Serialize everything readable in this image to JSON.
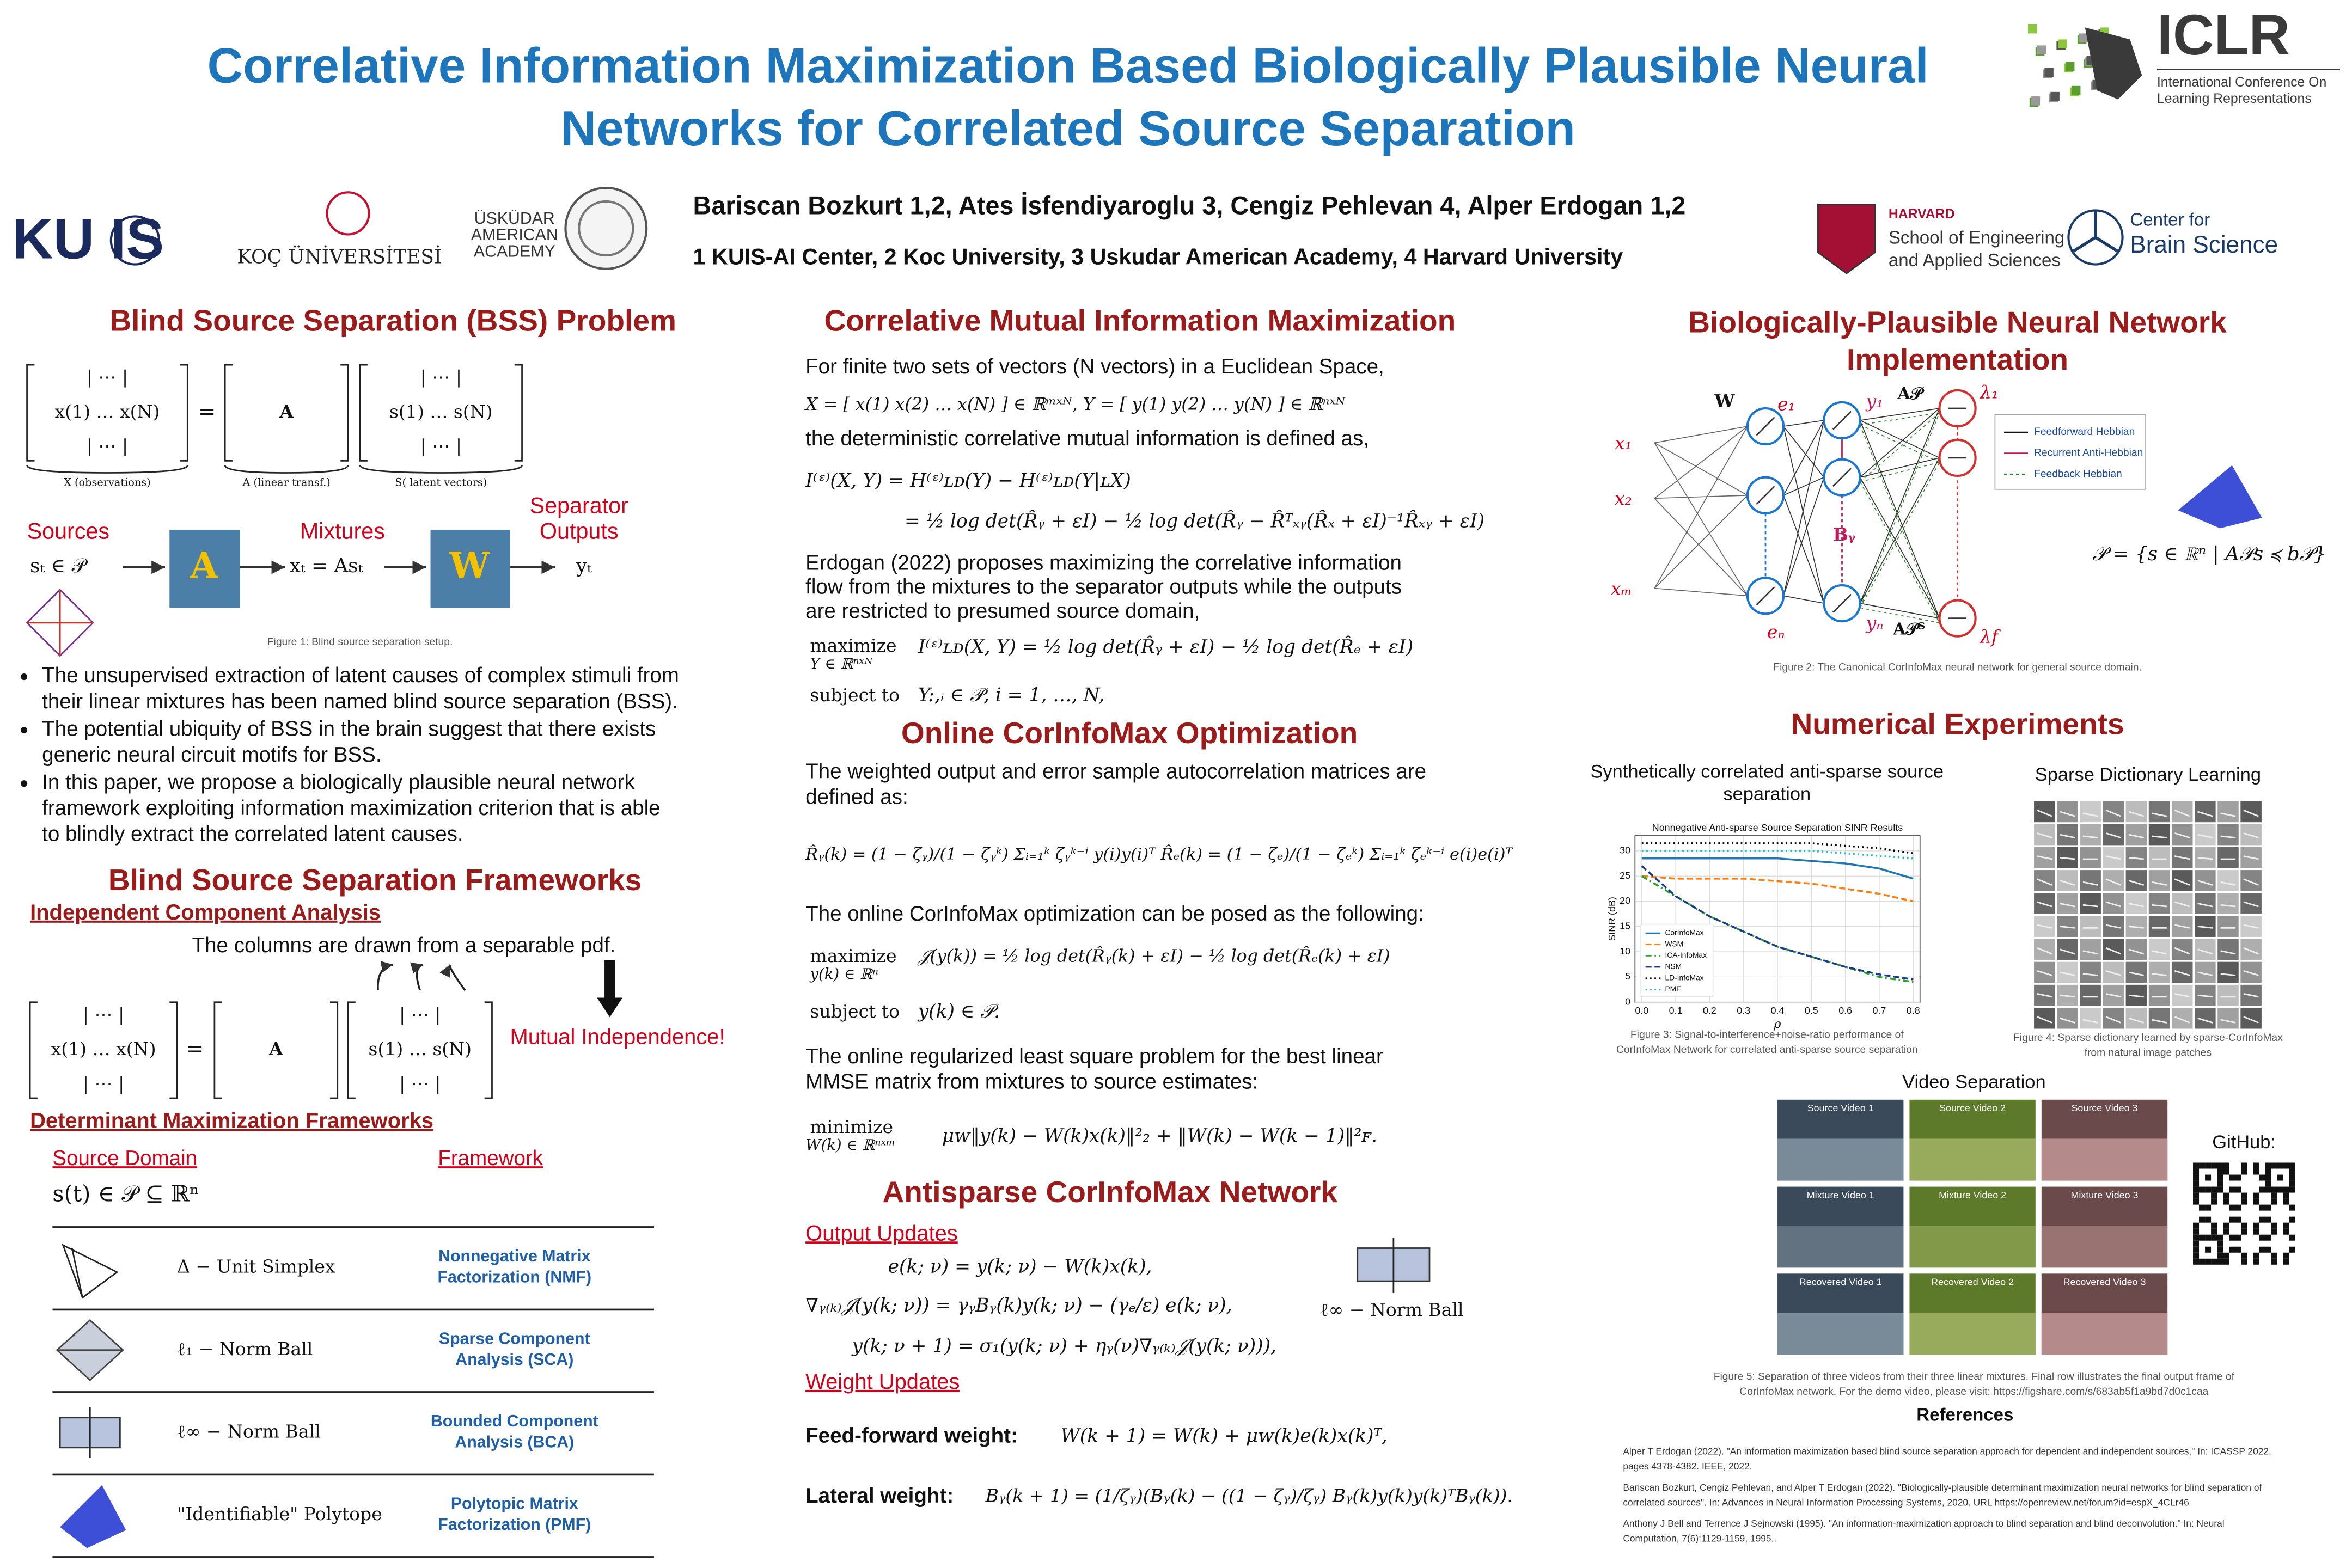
{
  "header": {
    "title_lines": [
      "Correlative Information Maximization Based Biologically Plausible Neural",
      "Networks for Correlated Source Separation"
    ],
    "authors": "Bariscan Bozkurt 1,2, Ates İsfendiyaroglu 3, Cengiz Pehlevan 4, Alper Erdogan 1,2",
    "affiliations": "1 KUIS-AI Center, 2 Koc University, 3 Uskudar American Academy, 4 Harvard University"
  },
  "logos": {
    "kuis": "KU IS",
    "koc": "KOÇ ÜNİVERSİTESİ",
    "uskudar": [
      "ÜSKÜDAR",
      "AMERICAN",
      "ACADEMY"
    ],
    "harvard": [
      "HARVARD",
      "School of Engineering",
      "and Applied Sciences"
    ],
    "cbs": [
      "Center for",
      "Brain Science"
    ],
    "iclr": [
      "ICLR",
      "International Conference On",
      "Learning Representations"
    ]
  },
  "bss_problem": {
    "heading": "Blind Source Separation (BSS) Problem",
    "matrix": {
      "x_rows": [
        "|   ⋯   |",
        "x(1)  …  x(N)",
        "|   ⋯   |"
      ],
      "s_rows": [
        "|   ⋯   |",
        "s(1)  …  s(N)",
        "|   ⋯   |"
      ],
      "a": "A",
      "equals": "=",
      "labels": [
        "X (observations)",
        "A (linear transf.)",
        "S( latent vectors)"
      ]
    },
    "diagram": {
      "sources": "Sources",
      "source_eq": "sₜ ∈ 𝒫",
      "a_box": "A",
      "mixtures": "Mixtures",
      "mix_eq": "xₜ = Asₜ",
      "w_box": "W",
      "outputs": [
        "Separator",
        "Outputs"
      ],
      "output_eq": "yₜ",
      "caption": "Figure 1: Blind source separation setup."
    },
    "bullets": [
      [
        "The unsupervised extraction of latent causes of complex stimuli from",
        "their linear mixtures has been named blind source separation (BSS)."
      ],
      [
        "The potential ubiquity of BSS in the brain suggest that there exists",
        "generic neural circuit motifs for BSS."
      ],
      [
        "In this paper, we propose a biologically plausible neural network",
        "framework exploiting information maximization criterion that is able",
        "to blindly extract the correlated latent causes."
      ]
    ]
  },
  "frameworks": {
    "heading": "Blind Source Separation Frameworks",
    "ica_label": "Independent Component Analysis",
    "ica_text": "The columns are drawn from a separable pdf.",
    "mutual": "Mutual Independence!",
    "det_label": "Determinant Maximization Frameworks",
    "headers": [
      "Source Domain",
      "Framework"
    ],
    "domain_eq": "s(t) ∈ 𝒫 ⊆ ℝⁿ",
    "rows": [
      {
        "domain": "Δ − Unit Simplex",
        "framework": [
          "Nonnegative Matrix",
          "Factorization (NMF)"
        ]
      },
      {
        "domain": "ℓ₁ − Norm Ball",
        "framework": [
          "Sparse Component",
          "Analysis (SCA)"
        ]
      },
      {
        "domain": "ℓ∞ − Norm Ball",
        "framework": [
          "Bounded Component",
          "Analysis (BCA)"
        ]
      },
      {
        "domain": "\"Identifiable\" Polytope",
        "framework": [
          "Polytopic Matrix",
          "Factorization (PMF)"
        ]
      }
    ]
  },
  "cmi": {
    "heading": "Correlative Mutual Information Maximization",
    "intro": "For finite two sets of vectors (N vectors) in a Euclidean Space,",
    "eq_vectors": "X = [ x(1)   x(2)   …   x(N) ] ∈ ℝᵐˣᴺ,     Y = [ y(1)   y(2)   …   y(N) ] ∈ ℝⁿˣᴺ",
    "defined": "the deterministic correlative mutual information is defined as,",
    "eq_mi": [
      "I⁽ᵋ⁾(X, Y) = H⁽ᵋ⁾ʟᴅ(Y) − H⁽ᵋ⁾ʟᴅ(Y|ʟX)",
      "= ½ log det(R̂ᵧ + εI) − ½ log det(R̂ᵧ − R̂ᵀₓᵧ(R̂ₓ + εI)⁻¹R̂ₓᵧ + εI)"
    ],
    "paragraph": [
      "Erdogan (2022) proposes maximizing the correlative information",
      "flow from the mixtures to the separator outputs while the outputs",
      "are restricted to presumed source domain,"
    ],
    "opt": [
      "maximize",
      "Y ∈ ℝⁿˣᴺ",
      "I⁽ᵋ⁾ʟᴅ(X, Y) = ½ log det(R̂ᵧ + εI) − ½ log det(R̂ₑ + εI)",
      "subject to",
      "Y:,ᵢ ∈ 𝒫, i = 1, …, N,"
    ]
  },
  "online": {
    "heading": "Online CorInfoMax Optimization",
    "text": [
      "The weighted output and error sample autocorrelation matrices are",
      "defined as:"
    ],
    "eq_autocorr": "R̂ᵧ(k) = (1 − ζᵧ)/(1 − ζᵧᵏ) Σᵢ₌₁ᵏ ζᵧᵏ⁻ⁱ y(i)y(i)ᵀ      R̂ₑ(k) = (1 − ζₑ)/(1 − ζₑᵏ) Σᵢ₌₁ᵏ ζₑᵏ⁻ⁱ e(i)e(i)ᵀ",
    "posed": "The online CorInfoMax optimization can be posed as the following:",
    "problem": [
      "maximize",
      "y(k) ∈ ℝⁿ",
      "𝒥(y(k)) = ½ log det(R̂ᵧ(k) + εI) − ½ log det(R̂ₑ(k) + εI)",
      "subject to",
      "y(k) ∈ 𝒫."
    ],
    "lsq_text": [
      "The online regularized least square problem for the best linear",
      "MMSE matrix from mixtures to source estimates:"
    ],
    "lsq": [
      "minimize",
      "W(k) ∈ ℝⁿˣᵐ",
      "μᴡ‖y(k) − W(k)x(k)‖²₂ + ‖W(k) − W(k − 1)‖²ꜰ."
    ]
  },
  "antisparse": {
    "heading": "Antisparse CorInfoMax Network",
    "output_label": "Output Updates",
    "output_eqs": [
      "e(k; ν) = y(k; ν) − W(k)x(k),",
      "∇ᵧ₍ₖ₎𝒥(y(k; ν)) = γᵧBᵧ(k)y(k; ν) − (γₑ/ε) e(k; ν),",
      "y(k; ν + 1) = σ₁(y(k; ν) + ηᵧ(ν)∇ᵧ₍ₖ₎𝒥(y(k; ν))),"
    ],
    "norm_ball": "ℓ∞ − Norm Ball",
    "weight_label": "Weight Updates",
    "ff_label": "Feed-forward weight:",
    "ff_eq": "W(k + 1) = W(k) + μᴡ(k)e(k)x(k)ᵀ,",
    "lat_label": "Lateral weight:",
    "lat_eq": "Bᵧ(k + 1) = (1/ζᵧ)(Bᵧ(k) − ((1 − ζᵧ)/ζᵧ) Bᵧ(k)y(k)y(k)ᵀBᵧ(k))."
  },
  "bio": {
    "heading": [
      "Biologically-Plausible Neural Network",
      "Implementation"
    ],
    "net": {
      "w": "W",
      "e1": "e₁",
      "en": "eₙ",
      "y1": "y₁",
      "yn": "yₙ",
      "ap": "A𝒫",
      "apt": "A𝒫ᵀ",
      "by": "Bᵧ",
      "l1": "λ₁",
      "lf": "λf",
      "x1": "x₁",
      "x2": "x₂",
      "xm": "xₘ"
    },
    "legend": [
      "Feedforward Hebbian",
      "Recurrent Anti-Hebbian",
      "Feedback Hebbian"
    ],
    "polytope_eq": "𝒫 = {s ∈ ℝⁿ | A𝒫s ≼ b𝒫}",
    "caption": "Figure 2: The Canonical CorInfoMax neural network for general source domain."
  },
  "numerical": {
    "heading": "Numerical Experiments",
    "fig3_title": [
      "Synthetically correlated anti-sparse source",
      "separation"
    ],
    "fig4_title": "Sparse Dictionary Learning",
    "fig3_caption": [
      "Figure 3: Signal-to-interference+noise-ratio performance of",
      "CorInfoMax Network for correlated anti-sparse source separation"
    ],
    "fig4_caption": [
      "Figure 4: Sparse dictionary learned by sparse-CorInfoMax",
      "from natural image patches"
    ],
    "video_title": "Video Separation",
    "videos": [
      "Source Video 1",
      "Source Video 2",
      "Source Video 3",
      "Mixture Video 1",
      "Mixture Video 2",
      "Mixture Video 3",
      "Recovered Video 1",
      "Recovered Video 2",
      "Recovered Video 3"
    ],
    "fig5_caption": [
      "Figure 5: Separation of three videos from their three linear mixtures. Final row illustrates the final output frame of",
      "CorInfoMax network. For the demo video, please visit: https://figshare.com/s/683ab5f1a9bd7d0c1caa"
    ],
    "github": "GitHub:"
  },
  "references": {
    "heading": "References",
    "items": [
      [
        "Alper T Erdogan (2022). \"An information maximization based blind source separation approach for dependent and independent sources,\" In: ICASSP 2022,",
        "pages 4378-4382. IEEE, 2022."
      ],
      [
        "Bariscan Bozkurt, Cengiz Pehlevan, and Alper T Erdogan (2022). \"Biologically-plausible determinant maximization neural networks for blind separation of",
        "correlated sources\". In: Advances in Neural Information Processing Systems, 2020. URL https://openreview.net/forum?id=espX_4CLr46"
      ],
      [
        "Anthony J Bell and Terrence J Sejnowski (1995). \"An information-maximization approach to blind separation and blind deconvolution.\" In: Neural",
        "Computation, 7(6):1129-1159, 1995.."
      ]
    ]
  },
  "chart_data": {
    "type": "line",
    "title": "Nonnegative Anti-sparse Source Separation SINR Results",
    "xlabel": "ρ",
    "ylabel": "SINR (dB)",
    "x": [
      0.0,
      0.1,
      0.2,
      0.3,
      0.4,
      0.5,
      0.6,
      0.7,
      0.8
    ],
    "xlim": [
      -0.02,
      0.82
    ],
    "ylim": [
      0,
      33
    ],
    "xticks": [
      {
        "value": 0,
        "label": "0.0"
      },
      0.1,
      0.2,
      0.3,
      0.4,
      0.5,
      0.6,
      0.7,
      0.8
    ],
    "yticks": [
      0,
      5,
      10,
      15,
      20,
      25,
      30
    ],
    "grid": true,
    "series": [
      {
        "name": "CorInfoMax",
        "color": "#1f77b4",
        "style": "solid",
        "values": [
          28.5,
          28.5,
          28.5,
          28.5,
          28.5,
          28,
          27.5,
          26.5,
          24.5
        ]
      },
      {
        "name": "WSM",
        "color": "#ff7f0e",
        "style": "dashed",
        "values": [
          25,
          24.5,
          24.5,
          24.5,
          24,
          23.5,
          22.5,
          21.5,
          20
        ]
      },
      {
        "name": "ICA-InfoMax",
        "color": "#2ca02c",
        "style": "dashdot",
        "values": [
          25,
          21,
          17,
          14,
          11,
          9,
          7,
          5,
          4
        ]
      },
      {
        "name": "NSM",
        "color": "#1a3a8f",
        "style": "dashed",
        "values": [
          27,
          21,
          17,
          14,
          11,
          9,
          7,
          5.5,
          4.5
        ]
      },
      {
        "name": "LD-InfoMax",
        "color": "#000000",
        "style": "dotted",
        "values": [
          31.5,
          31.5,
          31.5,
          31.5,
          31.5,
          31.5,
          31,
          30.5,
          29.5
        ]
      },
      {
        "name": "PMF",
        "color": "#17becf",
        "style": "dotted",
        "values": [
          30,
          30,
          30,
          30,
          30,
          30,
          29.5,
          29,
          28.5
        ]
      }
    ]
  }
}
